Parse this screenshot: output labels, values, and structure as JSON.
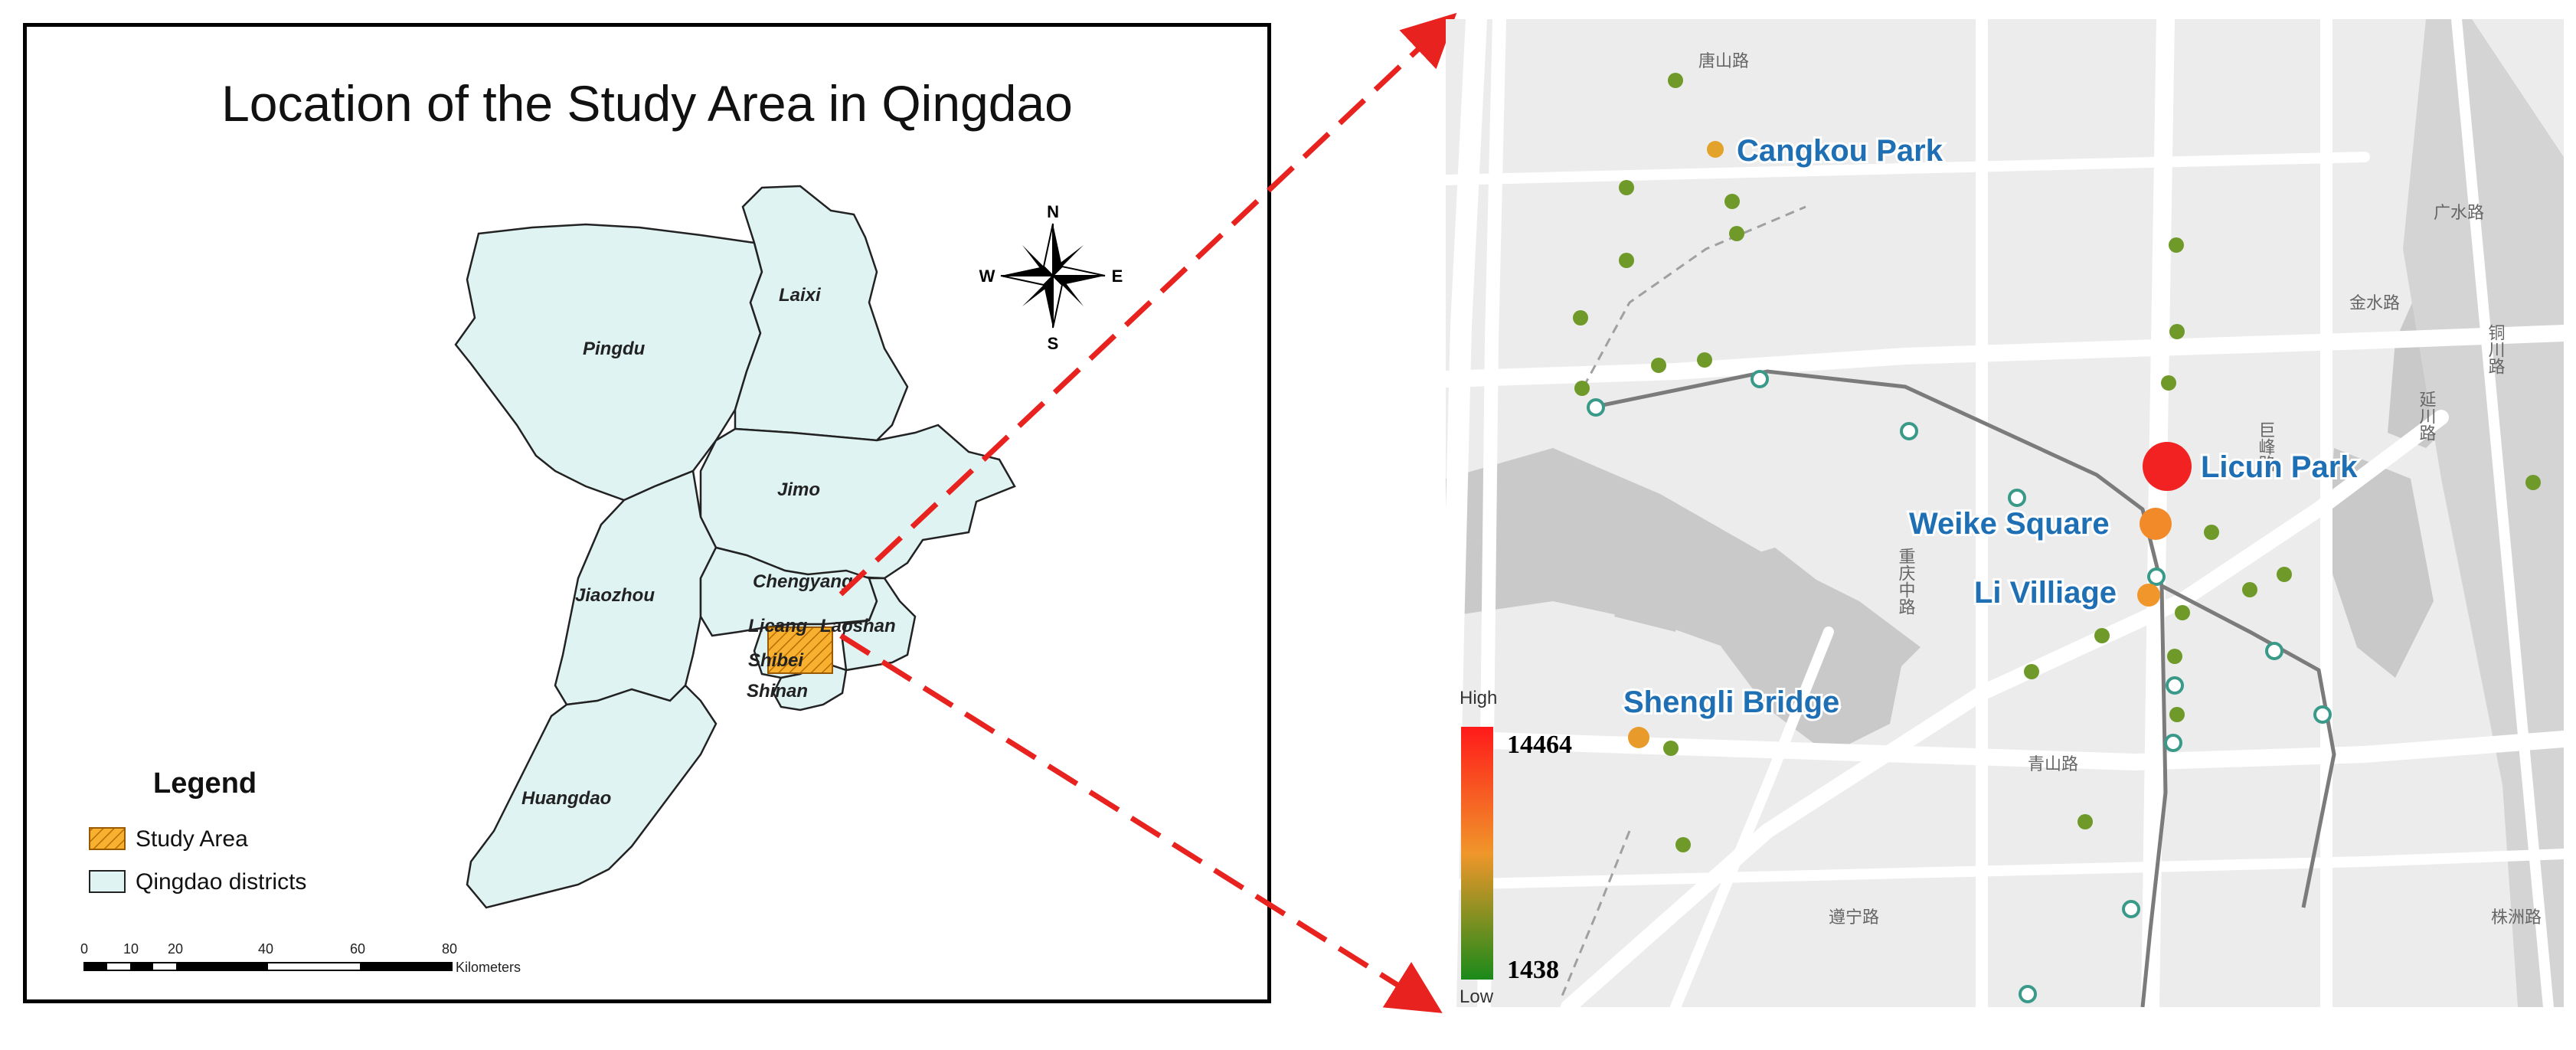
{
  "left_map": {
    "title": "Location of the Study Area in Qingdao",
    "districts": [
      "Pingdu",
      "Laixi",
      "Jimo",
      "Jiaozhou",
      "Chengyang",
      "Licang",
      "Laoshan",
      "Shibei",
      "Shinan",
      "Huangdao"
    ],
    "compass": {
      "n": "N",
      "s": "S",
      "e": "E",
      "w": "W"
    },
    "legend": {
      "title": "Legend",
      "items": [
        {
          "label": "Study Area",
          "color": "#f7b030"
        },
        {
          "label": "Qingdao districts",
          "color": "#e0f3f3"
        }
      ]
    },
    "scale_bar": {
      "ticks": [
        "0",
        "10",
        "20",
        "40",
        "60",
        "80"
      ],
      "unit": "Kilometers"
    }
  },
  "right_map": {
    "places": [
      "Cangkou Park",
      "Licun Park",
      "Weike Square",
      "Li Villiage",
      "Shengli Bridge"
    ],
    "road_labels": [
      "唐山路",
      "广水路",
      "金水路",
      "铜川路",
      "延川路",
      "巨峰路",
      "重庆中路",
      "青山路",
      "遵宁路",
      "株洲路"
    ],
    "color_scale": {
      "high_label": "High",
      "low_label": "Low",
      "max": "14464",
      "min": "1438",
      "high_color": "#ff1a1a",
      "mid_color": "#f0962a",
      "low_color": "#1a8a1a"
    }
  },
  "colors": {
    "arrow": "#e8221f",
    "district_fill": "#e0f3f3",
    "study_area": "#f7b030",
    "place_label": "#1f6fb4"
  }
}
